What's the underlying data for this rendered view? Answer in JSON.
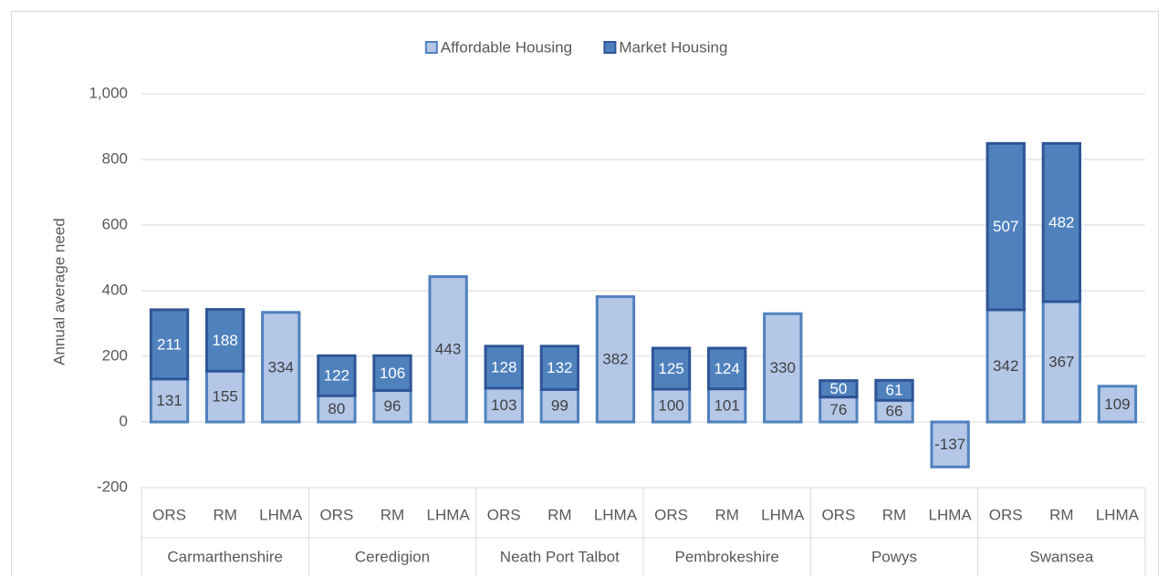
{
  "chart_data": {
    "type": "stacked_bar",
    "y_label": "Annual average need",
    "categories": [
      "ORS",
      "RM",
      "LHMA",
      "ORS",
      "RM",
      "LHMA",
      "ORS",
      "RM",
      "LHMA",
      "ORS",
      "RM",
      "LHMA",
      "ORS",
      "RM",
      "LHMA",
      "ORS",
      "RM",
      "LHMA"
    ],
    "groups": [
      "Carmarthenshire",
      "Ceredigion",
      "Neath Port Talbot",
      "Pembrokeshire",
      "Powys",
      "Swansea"
    ],
    "series": [
      {
        "name": "Affordable Housing",
        "color": "#b4c7e7",
        "edge": "#4f81bd",
        "label_color": "#404040",
        "values": [
          131,
          155,
          334,
          80,
          96,
          443,
          103,
          99,
          382,
          100,
          101,
          330,
          76,
          66,
          -137,
          342,
          367,
          109
        ]
      },
      {
        "name": "Market Housing",
        "color": "#4f81bd",
        "edge": "#2f5597",
        "label_color": "#ffffff",
        "values": [
          211,
          188,
          null,
          122,
          106,
          null,
          128,
          132,
          null,
          125,
          124,
          null,
          50,
          61,
          null,
          507,
          482,
          null
        ]
      }
    ],
    "ylim": [
      -200,
      1000
    ],
    "yticks": [
      -200,
      0,
      200,
      400,
      600,
      {
        "value": 800,
        "label": "800"
      },
      {
        "value": 1000,
        "label": "1,000"
      }
    ],
    "grid": true,
    "legend": "top"
  }
}
